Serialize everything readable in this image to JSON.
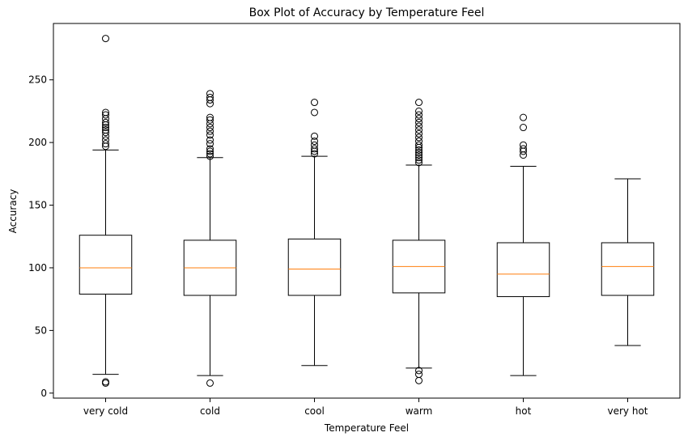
{
  "chart_data": {
    "type": "box",
    "title": "Box Plot of Accuracy by Temperature Feel",
    "xlabel": "Temperature Feel",
    "ylabel": "Accuracy",
    "ylim": [
      -4,
      295
    ],
    "yticks": [
      0,
      50,
      100,
      150,
      200,
      250
    ],
    "grid": false,
    "colors": {
      "box": "#000000",
      "median": "#ff7f0e"
    },
    "categories": [
      "very cold",
      "cold",
      "cool",
      "warm",
      "hot",
      "very hot"
    ],
    "boxes": [
      {
        "category": "very cold",
        "whisker_low": 15,
        "q1": 79,
        "median": 100,
        "q3": 126,
        "whisker_high": 194,
        "outliers": [
          9,
          8,
          197,
          199,
          202,
          205,
          208,
          210,
          212,
          214,
          216,
          219,
          222,
          224,
          283
        ]
      },
      {
        "category": "cold",
        "whisker_low": 14,
        "q1": 78,
        "median": 100,
        "q3": 122,
        "whisker_high": 188,
        "outliers": [
          8,
          189,
          191,
          193,
          195,
          199,
          202,
          206,
          209,
          212,
          215,
          218,
          220,
          231,
          234,
          236,
          239
        ]
      },
      {
        "category": "cool",
        "whisker_low": 22,
        "q1": 78,
        "median": 99,
        "q3": 123,
        "whisker_high": 189,
        "outliers": [
          191,
          193,
          195,
          198,
          201,
          205,
          224,
          232
        ]
      },
      {
        "category": "warm",
        "whisker_low": 20,
        "q1": 80,
        "median": 101,
        "q3": 122,
        "whisker_high": 182,
        "outliers": [
          10,
          15,
          18,
          184,
          186,
          188,
          190,
          192,
          194,
          196,
          198,
          201,
          204,
          207,
          210,
          213,
          216,
          219,
          222,
          225,
          232
        ]
      },
      {
        "category": "hot",
        "whisker_low": 14,
        "q1": 77,
        "median": 95,
        "q3": 120,
        "whisker_high": 181,
        "outliers": [
          190,
          193,
          195,
          198,
          212,
          220
        ]
      },
      {
        "category": "very hot",
        "whisker_low": 38,
        "q1": 78,
        "median": 101,
        "q3": 120,
        "whisker_high": 171,
        "outliers": []
      }
    ]
  }
}
